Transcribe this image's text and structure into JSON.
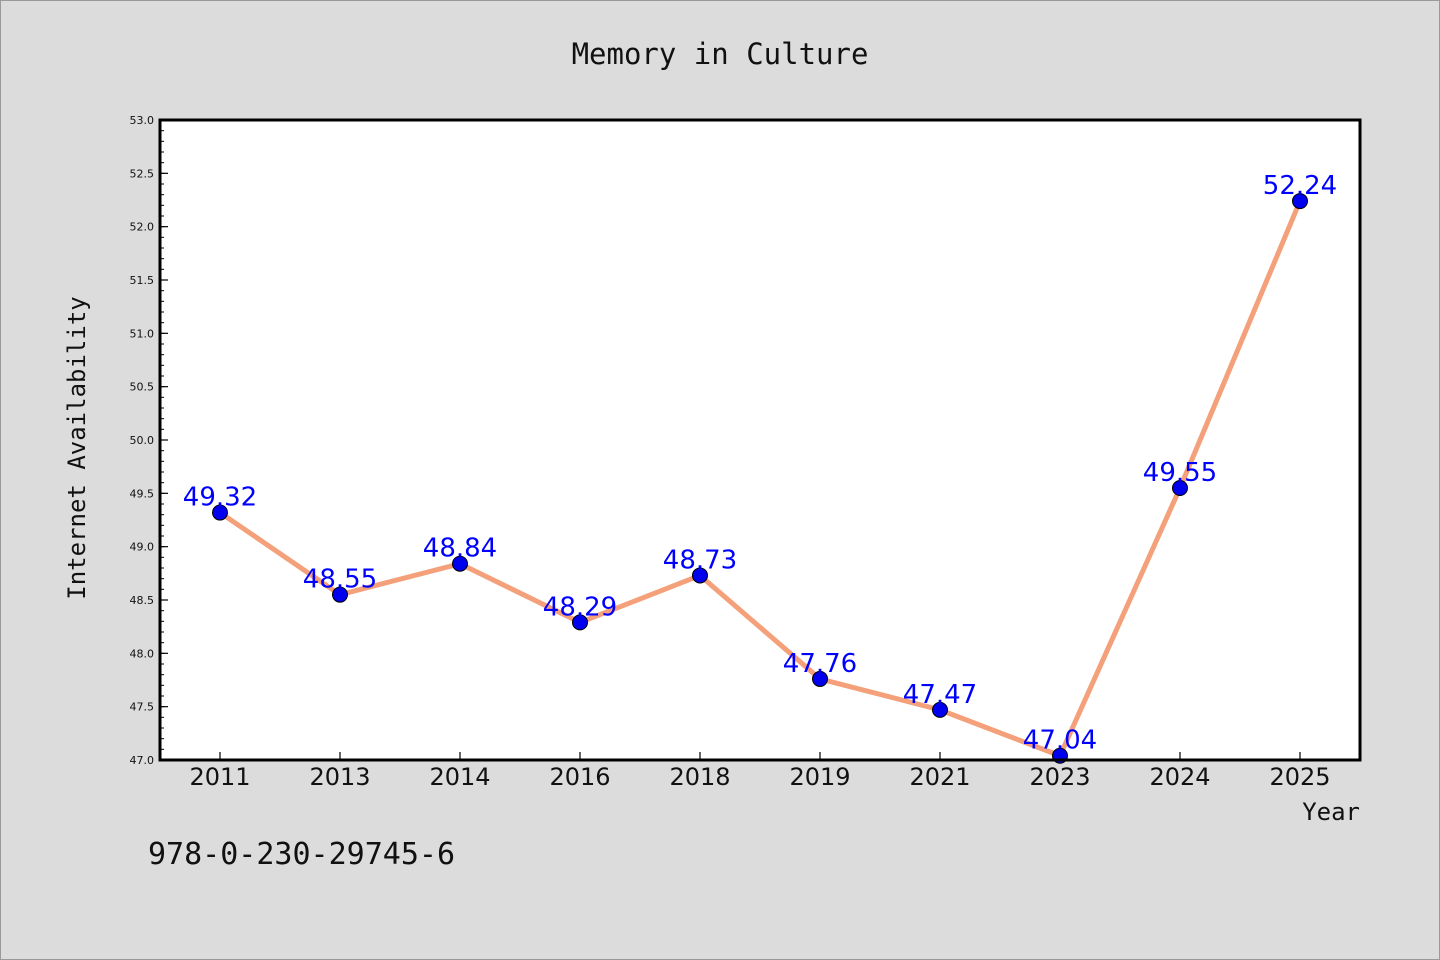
{
  "footer": {
    "isbn": "978-0-230-29745-6"
  },
  "chart_data": {
    "type": "line",
    "title": "Memory in Culture",
    "xlabel": "Year",
    "ylabel": "Internet Availability",
    "categories": [
      "2011",
      "2013",
      "2014",
      "2016",
      "2018",
      "2019",
      "2021",
      "2023",
      "2024",
      "2025"
    ],
    "values": [
      49.32,
      48.55,
      48.84,
      48.29,
      48.73,
      47.76,
      47.47,
      47.04,
      49.55,
      52.24
    ],
    "data_labels": [
      "49.32",
      "48.55",
      "48.84",
      "48.29",
      "48.73",
      "47.76",
      "47.47",
      "47.04",
      "49.55",
      "52.24"
    ],
    "ylim": [
      47.0,
      53.0
    ],
    "yticks": [
      "47.0",
      "47.5",
      "48.0",
      "48.5",
      "49.0",
      "49.5",
      "50.0",
      "50.5",
      "51.0",
      "51.5",
      "52.0",
      "52.5",
      "53.0"
    ],
    "grid": false,
    "legend": "none",
    "colors": {
      "line": "#f4a07a",
      "marker": "#0000ee",
      "marker_edge": "#000000",
      "data_label": "#0000ff",
      "background": "#dcdcdc",
      "plot_background": "#ffffff"
    }
  }
}
